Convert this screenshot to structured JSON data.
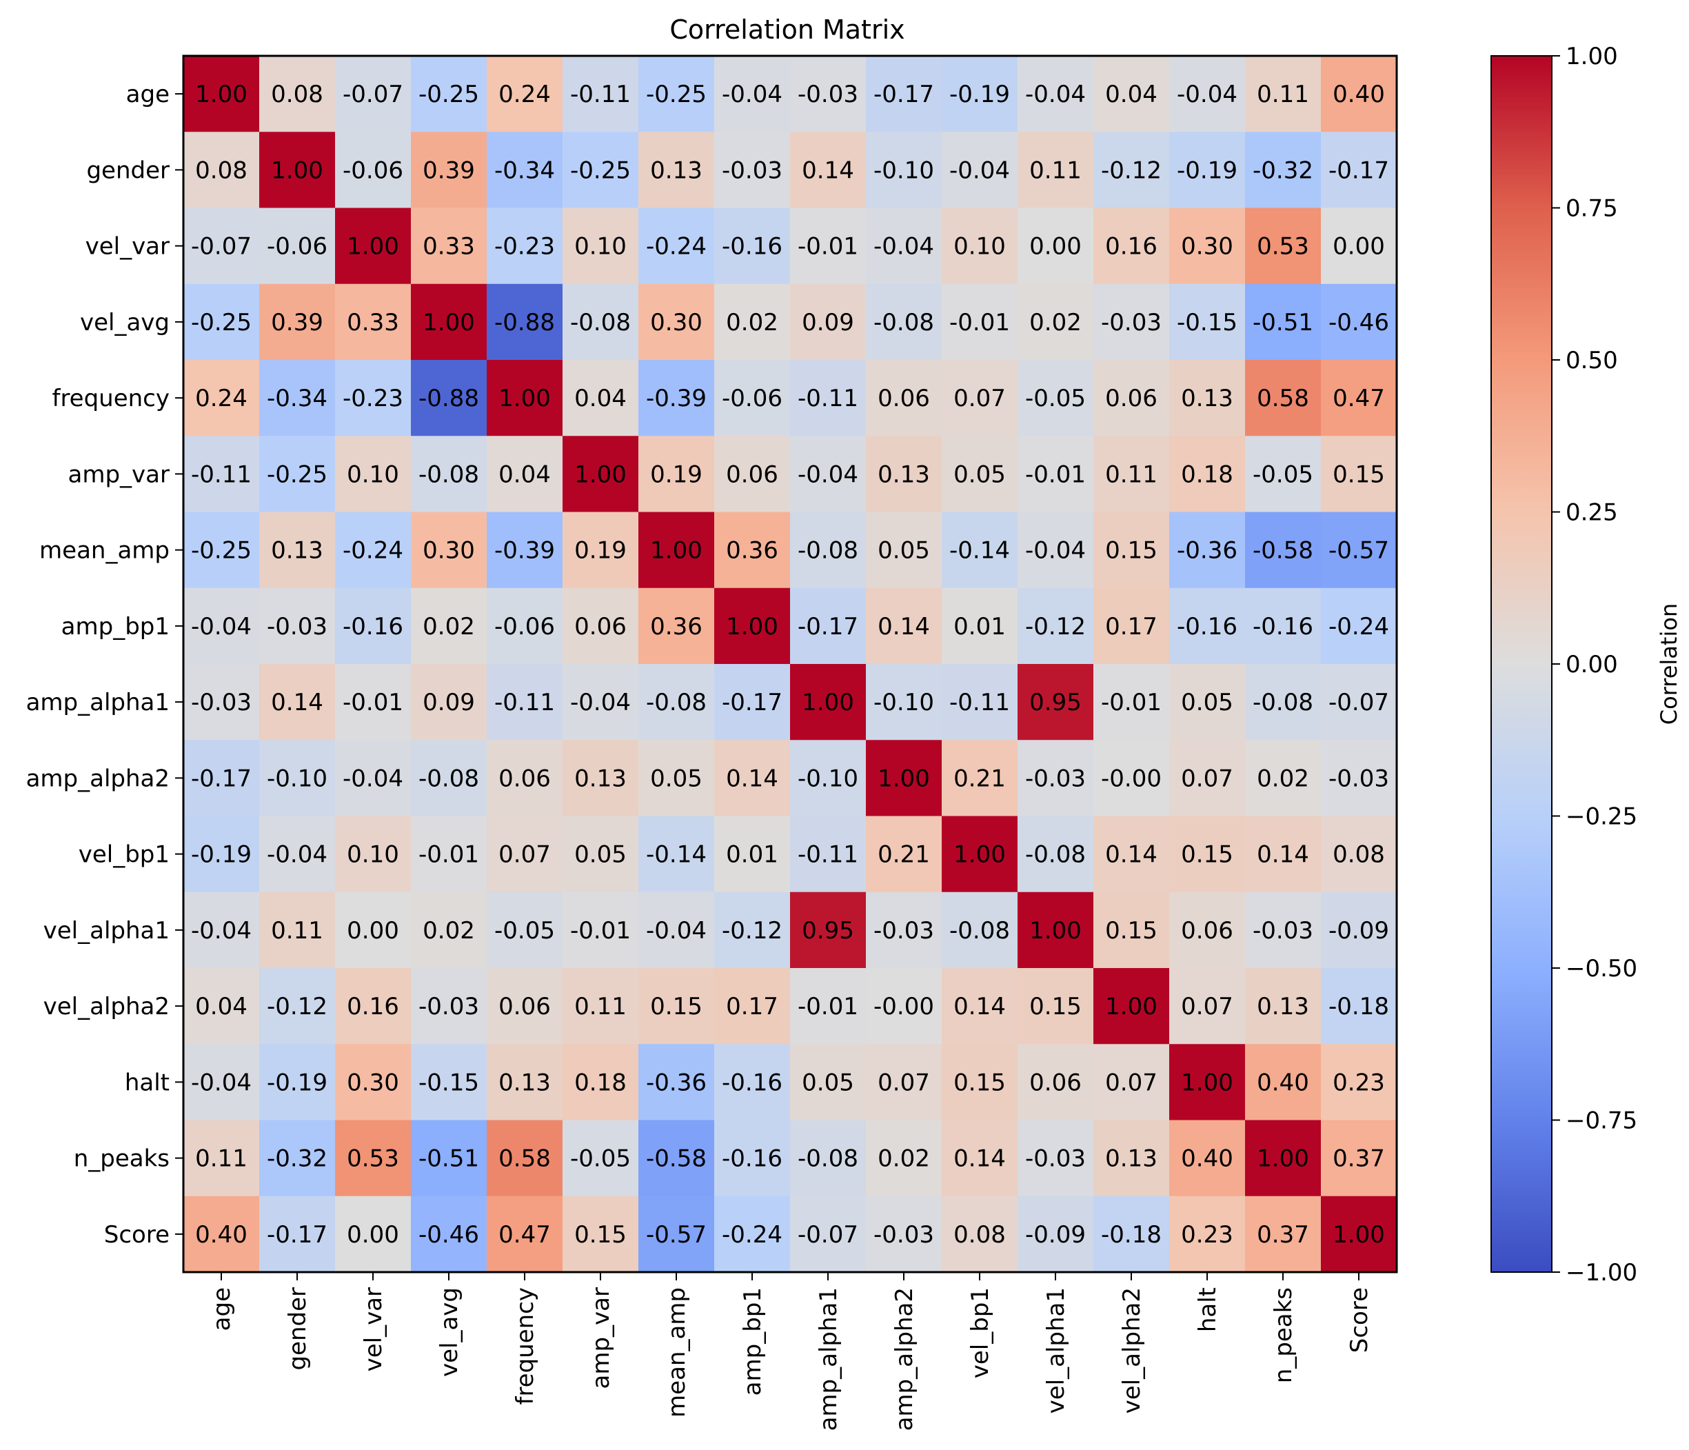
{
  "chart_data": {
    "type": "heatmap",
    "title": "Correlation Matrix",
    "labels": [
      "age",
      "gender",
      "vel_var",
      "vel_avg",
      "frequency",
      "amp_var",
      "mean_amp",
      "amp_bp1",
      "amp_alpha1",
      "amp_alpha2",
      "vel_bp1",
      "vel_alpha1",
      "vel_alpha2",
      "halt",
      "n_peaks",
      "Score"
    ],
    "values": [
      [
        1.0,
        0.08,
        -0.07,
        -0.25,
        0.24,
        -0.11,
        -0.25,
        -0.04,
        -0.03,
        -0.17,
        -0.19,
        -0.04,
        0.04,
        -0.04,
        0.11,
        0.4
      ],
      [
        0.08,
        1.0,
        -0.06,
        0.39,
        -0.34,
        -0.25,
        0.13,
        -0.03,
        0.14,
        -0.1,
        -0.04,
        0.11,
        -0.12,
        -0.19,
        -0.32,
        -0.17
      ],
      [
        -0.07,
        -0.06,
        1.0,
        0.33,
        -0.23,
        0.1,
        -0.24,
        -0.16,
        -0.01,
        -0.04,
        0.1,
        0.0,
        0.16,
        0.3,
        0.53,
        0.0
      ],
      [
        -0.25,
        0.39,
        0.33,
        1.0,
        -0.88,
        -0.08,
        0.3,
        0.02,
        0.09,
        -0.08,
        -0.01,
        0.02,
        -0.03,
        -0.15,
        -0.51,
        -0.46
      ],
      [
        0.24,
        -0.34,
        -0.23,
        -0.88,
        1.0,
        0.04,
        -0.39,
        -0.06,
        -0.11,
        0.06,
        0.07,
        -0.05,
        0.06,
        0.13,
        0.58,
        0.47
      ],
      [
        -0.11,
        -0.25,
        0.1,
        -0.08,
        0.04,
        1.0,
        0.19,
        0.06,
        -0.04,
        0.13,
        0.05,
        -0.01,
        0.11,
        0.18,
        -0.05,
        0.15
      ],
      [
        -0.25,
        0.13,
        -0.24,
        0.3,
        -0.39,
        0.19,
        1.0,
        0.36,
        -0.08,
        0.05,
        -0.14,
        -0.04,
        0.15,
        -0.36,
        -0.58,
        -0.57
      ],
      [
        -0.04,
        -0.03,
        -0.16,
        0.02,
        -0.06,
        0.06,
        0.36,
        1.0,
        -0.17,
        0.14,
        0.01,
        -0.12,
        0.17,
        -0.16,
        -0.16,
        -0.24
      ],
      [
        -0.03,
        0.14,
        -0.01,
        0.09,
        -0.11,
        -0.04,
        -0.08,
        -0.17,
        1.0,
        -0.1,
        -0.11,
        0.95,
        -0.01,
        0.05,
        -0.08,
        -0.07
      ],
      [
        -0.17,
        -0.1,
        -0.04,
        -0.08,
        0.06,
        0.13,
        0.05,
        0.14,
        -0.1,
        1.0,
        0.21,
        -0.03,
        "-0.00",
        0.07,
        0.02,
        -0.03
      ],
      [
        -0.19,
        -0.04,
        0.1,
        -0.01,
        0.07,
        0.05,
        -0.14,
        0.01,
        -0.11,
        0.21,
        1.0,
        -0.08,
        0.14,
        0.15,
        0.14,
        0.08
      ],
      [
        -0.04,
        0.11,
        0.0,
        0.02,
        -0.05,
        -0.01,
        -0.04,
        -0.12,
        0.95,
        -0.03,
        -0.08,
        1.0,
        0.15,
        0.06,
        -0.03,
        -0.09
      ],
      [
        0.04,
        -0.12,
        0.16,
        -0.03,
        0.06,
        0.11,
        0.15,
        0.17,
        -0.01,
        "-0.00",
        0.14,
        0.15,
        1.0,
        0.07,
        0.13,
        -0.18
      ],
      [
        -0.04,
        -0.19,
        0.3,
        -0.15,
        0.13,
        0.18,
        -0.36,
        -0.16,
        0.05,
        0.07,
        0.15,
        0.06,
        0.07,
        1.0,
        0.4,
        0.23
      ],
      [
        0.11,
        -0.32,
        0.53,
        -0.51,
        0.58,
        -0.05,
        -0.58,
        -0.16,
        -0.08,
        0.02,
        0.14,
        -0.03,
        0.13,
        0.4,
        1.0,
        0.37
      ],
      [
        0.4,
        -0.17,
        0.0,
        -0.46,
        0.47,
        0.15,
        -0.57,
        -0.24,
        -0.07,
        -0.03,
        0.08,
        -0.09,
        -0.18,
        0.23,
        0.37,
        1.0
      ]
    ],
    "colorbar": {
      "label": "Correlation",
      "range": [
        -1.0,
        1.0
      ],
      "ticks": [
        1.0,
        0.75,
        0.5,
        0.25,
        0.0,
        -0.25,
        -0.5,
        -0.75,
        -1.0
      ],
      "tick_labels": [
        "1.00",
        "0.75",
        "0.50",
        "0.25",
        "0.00",
        "−0.25",
        "−0.50",
        "−0.75",
        "−1.00"
      ],
      "colormap": "coolwarm",
      "colors": {
        "low": "#3b4cc0",
        "mid": "#dddddd",
        "high": "#b40426"
      }
    }
  }
}
